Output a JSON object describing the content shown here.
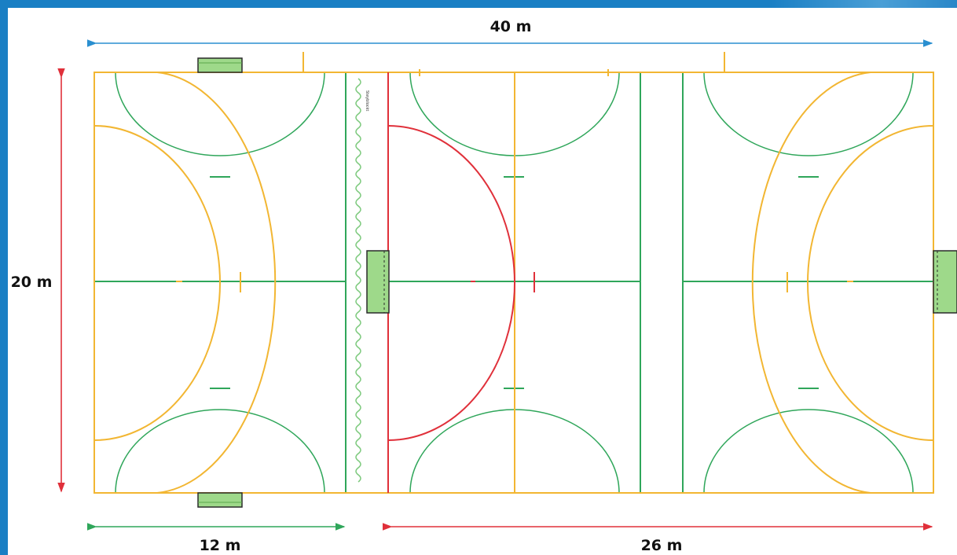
{
  "dimensions": {
    "length": "40 m",
    "width": "20 m",
    "zone_a": "12 m",
    "zone_b": "26 m"
  },
  "zone_label": "Steyblockt",
  "colors": {
    "yellow": "#f2b632",
    "green": "#2fa65a",
    "red": "#e0303a",
    "blue": "#2a8fd0",
    "goal_fill": "#9ed98a",
    "frame": "#1a7fc4"
  }
}
